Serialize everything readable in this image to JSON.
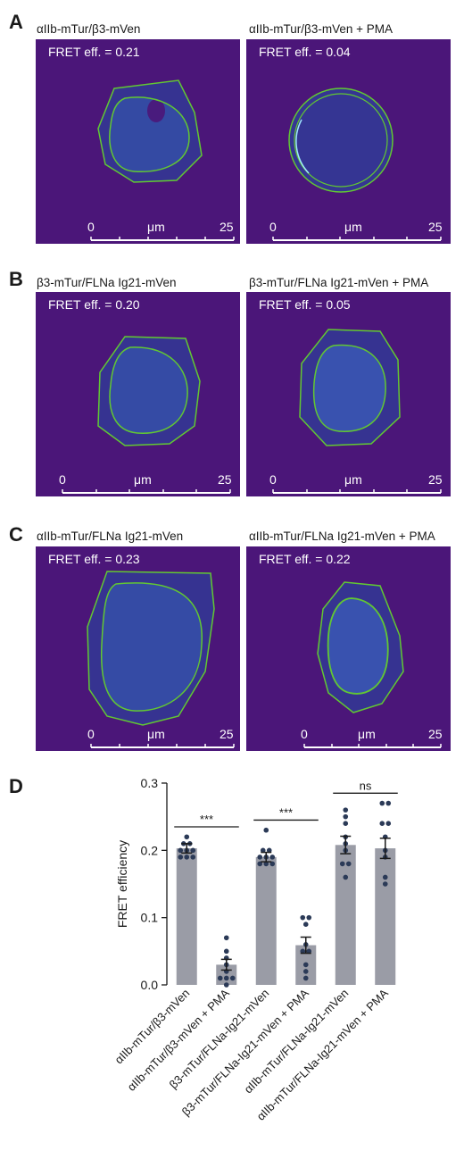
{
  "panels": [
    {
      "letter": "A",
      "left": {
        "caption": "αIIb-mTur/β3-mVen",
        "fret": "FRET eff. = 0.21",
        "scale_start": "0",
        "scale_unit": "μm",
        "scale_end": "25"
      },
      "right": {
        "caption": "αIIb-mTur/β3-mVen + PMA",
        "fret": "FRET eff. = 0.04",
        "scale_start": "0",
        "scale_unit": "μm",
        "scale_end": "25"
      }
    },
    {
      "letter": "B",
      "left": {
        "caption": "β3-mTur/FLNa Ig21-mVen",
        "fret": "FRET eff. = 0.20",
        "scale_start": "0",
        "scale_unit": "μm",
        "scale_end": "25"
      },
      "right": {
        "caption": "β3-mTur/FLNa Ig21-mVen + PMA",
        "fret": "FRET eff. = 0.05",
        "scale_start": "0",
        "scale_unit": "μm",
        "scale_end": "25"
      }
    },
    {
      "letter": "C",
      "left": {
        "caption": "αIIb-mTur/FLNa Ig21-mVen",
        "fret": "FRET eff. = 0.23",
        "scale_start": "0",
        "scale_unit": "μm",
        "scale_end": "25"
      },
      "right": {
        "caption": "αIIb-mTur/FLNa Ig21-mVen + PMA",
        "fret": "FRET eff. = 0.22",
        "scale_start": "0",
        "scale_unit": "μm",
        "scale_end": "25"
      }
    }
  ],
  "colors": {
    "image_background": "#4b1679",
    "cell_interior": "#3a3f9e",
    "cell_outline": "#62c832",
    "bar_fill": "#9a9ca6",
    "dot": "#2b3a57"
  },
  "chart_data": {
    "type": "bar",
    "panel_letter": "D",
    "ylabel": "FRET efficiency",
    "ylim": [
      0,
      0.3
    ],
    "yticks": [
      "0.0",
      "0.1",
      "0.2",
      "0.3"
    ],
    "categories": [
      "αIIb-mTur/β3-mVen",
      "αIIb-mTur/β3-mVen + PMA",
      "β3-mTur/FLNa-Ig21-mVen",
      "β3-mTur/FLNa-Ig21-mVen + PMA",
      "αIIb-mTur/FLNa-Ig21-mVen",
      "αIIb-mTur/FLNa-Ig21-mVen + PMA"
    ],
    "values": [
      0.203,
      0.03,
      0.19,
      0.059,
      0.208,
      0.203
    ],
    "errors": [
      0.007,
      0.008,
      0.007,
      0.012,
      0.013,
      0.015
    ],
    "points": [
      [
        0.22,
        0.21,
        0.21,
        0.2,
        0.2,
        0.2,
        0.19,
        0.19,
        0.19
      ],
      [
        0.07,
        0.05,
        0.04,
        0.03,
        0.02,
        0.01,
        0.01,
        0.01,
        0.0
      ],
      [
        0.23,
        0.2,
        0.2,
        0.19,
        0.19,
        0.19,
        0.18,
        0.18,
        0.18
      ],
      [
        0.1,
        0.1,
        0.09,
        0.06,
        0.05,
        0.05,
        0.03,
        0.02,
        0.01
      ],
      [
        0.26,
        0.25,
        0.24,
        0.22,
        0.21,
        0.2,
        0.18,
        0.18,
        0.16
      ],
      [
        0.27,
        0.27,
        0.24,
        0.24,
        0.22,
        0.2,
        0.19,
        0.16,
        0.15
      ]
    ],
    "significance": [
      {
        "from": 0,
        "to": 1,
        "label": "***"
      },
      {
        "from": 2,
        "to": 3,
        "label": "***"
      },
      {
        "from": 4,
        "to": 5,
        "label": "ns"
      }
    ]
  }
}
